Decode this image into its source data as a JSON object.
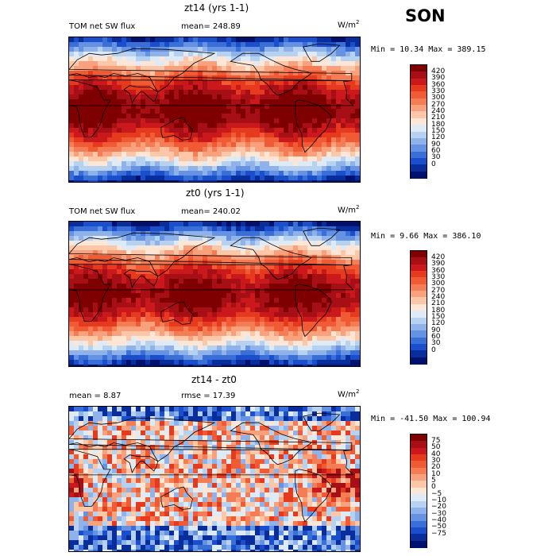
{
  "season": "SON",
  "units": {
    "base": "W/m",
    "exp": "2"
  },
  "panels": [
    {
      "title": "zt14 (yrs 1-1)",
      "left_label": "TOM net SW flux",
      "mid_label": "mean= 248.89",
      "minmax": "Min =  10.34 Max = 389.15",
      "colorbar": {
        "labels": [
          "420",
          "390",
          "360",
          "330",
          "300",
          "270",
          "240",
          "210",
          "180",
          "150",
          "120",
          "90",
          "60",
          "30",
          "0"
        ],
        "colors": [
          "#7f0000",
          "#a50f15",
          "#cb181d",
          "#e63a1f",
          "#f05a35",
          "#f57d55",
          "#f9a17c",
          "#fcc6a8",
          "#fde6d6",
          "#deebf7",
          "#b7d1f0",
          "#8fb2ea",
          "#6592e2",
          "#3a6fd8",
          "#1a4ecc",
          "#0a2d9c",
          "#00106e"
        ]
      },
      "chart_data": {
        "type": "heatmap",
        "field": "TOM net SW flux",
        "run": "zt14 (yrs 1-1)",
        "mean": 248.89,
        "min": 10.34,
        "max": 389.15
      }
    },
    {
      "title": "zt0 (yrs 1-1)",
      "left_label": "TOM net SW flux",
      "mid_label": "mean= 240.02",
      "minmax": "Min =   9.66 Max = 386.10",
      "colorbar": {
        "labels": [
          "420",
          "390",
          "360",
          "330",
          "300",
          "270",
          "240",
          "210",
          "180",
          "150",
          "120",
          "90",
          "60",
          "30",
          "0"
        ],
        "colors": [
          "#7f0000",
          "#a50f15",
          "#cb181d",
          "#e63a1f",
          "#f05a35",
          "#f57d55",
          "#f9a17c",
          "#fcc6a8",
          "#fde6d6",
          "#deebf7",
          "#b7d1f0",
          "#8fb2ea",
          "#6592e2",
          "#3a6fd8",
          "#1a4ecc",
          "#0a2d9c",
          "#00106e"
        ]
      },
      "chart_data": {
        "type": "heatmap",
        "field": "TOM net SW flux",
        "run": "zt0 (yrs 1-1)",
        "mean": 240.02,
        "min": 9.66,
        "max": 386.1
      }
    },
    {
      "title": "zt14 - zt0",
      "left_label": "mean =   8.87",
      "mid_label": "rmse =  17.39",
      "minmax": "Min = -41.50 Max = 100.94",
      "colorbar": {
        "labels": [
          "75",
          "50",
          "40",
          "30",
          "20",
          "10",
          "5",
          "0",
          "−5",
          "−10",
          "−20",
          "−30",
          "−40",
          "−50",
          "−75"
        ],
        "colors": [
          "#7f0000",
          "#a50f15",
          "#cb181d",
          "#e63a1f",
          "#f05a35",
          "#f57d55",
          "#f9a17c",
          "#fcc6a8",
          "#fde6d6",
          "#deebf7",
          "#b7d1f0",
          "#8fb2ea",
          "#6592e2",
          "#3a6fd8",
          "#1a4ecc",
          "#0a2d9c",
          "#00106e"
        ]
      },
      "chart_data": {
        "type": "heatmap",
        "field": "difference",
        "run": "zt14 - zt0",
        "mean": 8.87,
        "rmse": 17.39,
        "min": -41.5,
        "max": 100.94
      }
    }
  ]
}
